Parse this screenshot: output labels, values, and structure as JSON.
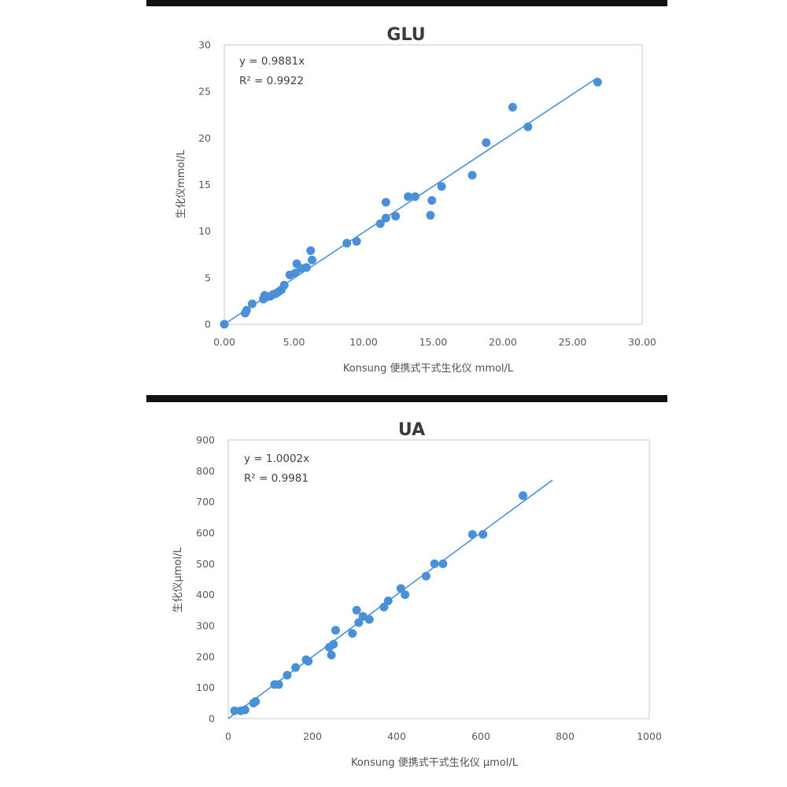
{
  "chart_data": [
    {
      "type": "scatter",
      "title": "GLU",
      "xlabel": "Konsung 便携式干式生化仪 mmol/L",
      "ylabel": "生化仪mmol/L",
      "xlim": [
        0,
        30
      ],
      "ylim": [
        0,
        30
      ],
      "xticks": [
        "0.00",
        "5.00",
        "10.00",
        "15.00",
        "20.00",
        "25.00",
        "30.00"
      ],
      "yticks": [
        "0",
        "5",
        "10",
        "15",
        "20",
        "25",
        "30"
      ],
      "grid": false,
      "equation": "y = 0.9881x",
      "r_squared": "R² = 0.9922",
      "trendline": {
        "slope": 0.9881,
        "x_range": [
          0,
          26.8
        ]
      },
      "marker_color": "#4a90d9",
      "line_color": "#4a90d9",
      "points": [
        [
          0,
          0
        ],
        [
          1.5,
          1.2
        ],
        [
          1.6,
          1.5
        ],
        [
          2.0,
          2.2
        ],
        [
          2.8,
          2.7
        ],
        [
          2.9,
          3.1
        ],
        [
          3.0,
          2.9
        ],
        [
          3.3,
          3.0
        ],
        [
          3.5,
          3.2
        ],
        [
          3.7,
          3.3
        ],
        [
          3.9,
          3.5
        ],
        [
          4.1,
          3.7
        ],
        [
          4.3,
          4.2
        ],
        [
          4.7,
          5.3
        ],
        [
          5.1,
          5.5
        ],
        [
          5.2,
          6.5
        ],
        [
          5.5,
          6.0
        ],
        [
          5.9,
          6.1
        ],
        [
          6.2,
          7.9
        ],
        [
          6.3,
          6.9
        ],
        [
          8.8,
          8.7
        ],
        [
          9.5,
          8.9
        ],
        [
          11.2,
          10.8
        ],
        [
          11.6,
          13.1
        ],
        [
          11.6,
          11.4
        ],
        [
          12.3,
          11.6
        ],
        [
          13.2,
          13.7
        ],
        [
          13.7,
          13.7
        ],
        [
          14.8,
          11.7
        ],
        [
          14.9,
          13.3
        ],
        [
          15.6,
          14.8
        ],
        [
          17.8,
          16.0
        ],
        [
          18.8,
          19.5
        ],
        [
          20.7,
          23.3
        ],
        [
          21.8,
          21.2
        ],
        [
          26.8,
          26.0
        ]
      ]
    },
    {
      "type": "scatter",
      "title": "UA",
      "xlabel": "Konsung 便携式干式生化仪 μmol/L",
      "ylabel": "生化仪μmol/L",
      "xlim": [
        0,
        1000
      ],
      "ylim": [
        0,
        900
      ],
      "xticks": [
        "0",
        "200",
        "400",
        "600",
        "800",
        "1000"
      ],
      "yticks": [
        "0",
        "100",
        "200",
        "300",
        "400",
        "500",
        "600",
        "700",
        "800",
        "900"
      ],
      "grid": false,
      "equation": "y = 1.0002x",
      "r_squared": "R² = 0.9981",
      "trendline": {
        "slope": 1.0002,
        "x_range": [
          0,
          770
        ]
      },
      "marker_color": "#4a90d9",
      "line_color": "#4a90d9",
      "points": [
        [
          15,
          25
        ],
        [
          30,
          25
        ],
        [
          40,
          28
        ],
        [
          60,
          50
        ],
        [
          65,
          55
        ],
        [
          110,
          110
        ],
        [
          120,
          110
        ],
        [
          140,
          140
        ],
        [
          160,
          165
        ],
        [
          185,
          190
        ],
        [
          190,
          185
        ],
        [
          240,
          230
        ],
        [
          245,
          205
        ],
        [
          250,
          240
        ],
        [
          255,
          285
        ],
        [
          295,
          275
        ],
        [
          305,
          350
        ],
        [
          310,
          310
        ],
        [
          320,
          330
        ],
        [
          335,
          320
        ],
        [
          370,
          360
        ],
        [
          380,
          380
        ],
        [
          410,
          420
        ],
        [
          420,
          400
        ],
        [
          470,
          460
        ],
        [
          490,
          500
        ],
        [
          510,
          500
        ],
        [
          580,
          595
        ],
        [
          605,
          595
        ],
        [
          700,
          720
        ]
      ]
    }
  ]
}
